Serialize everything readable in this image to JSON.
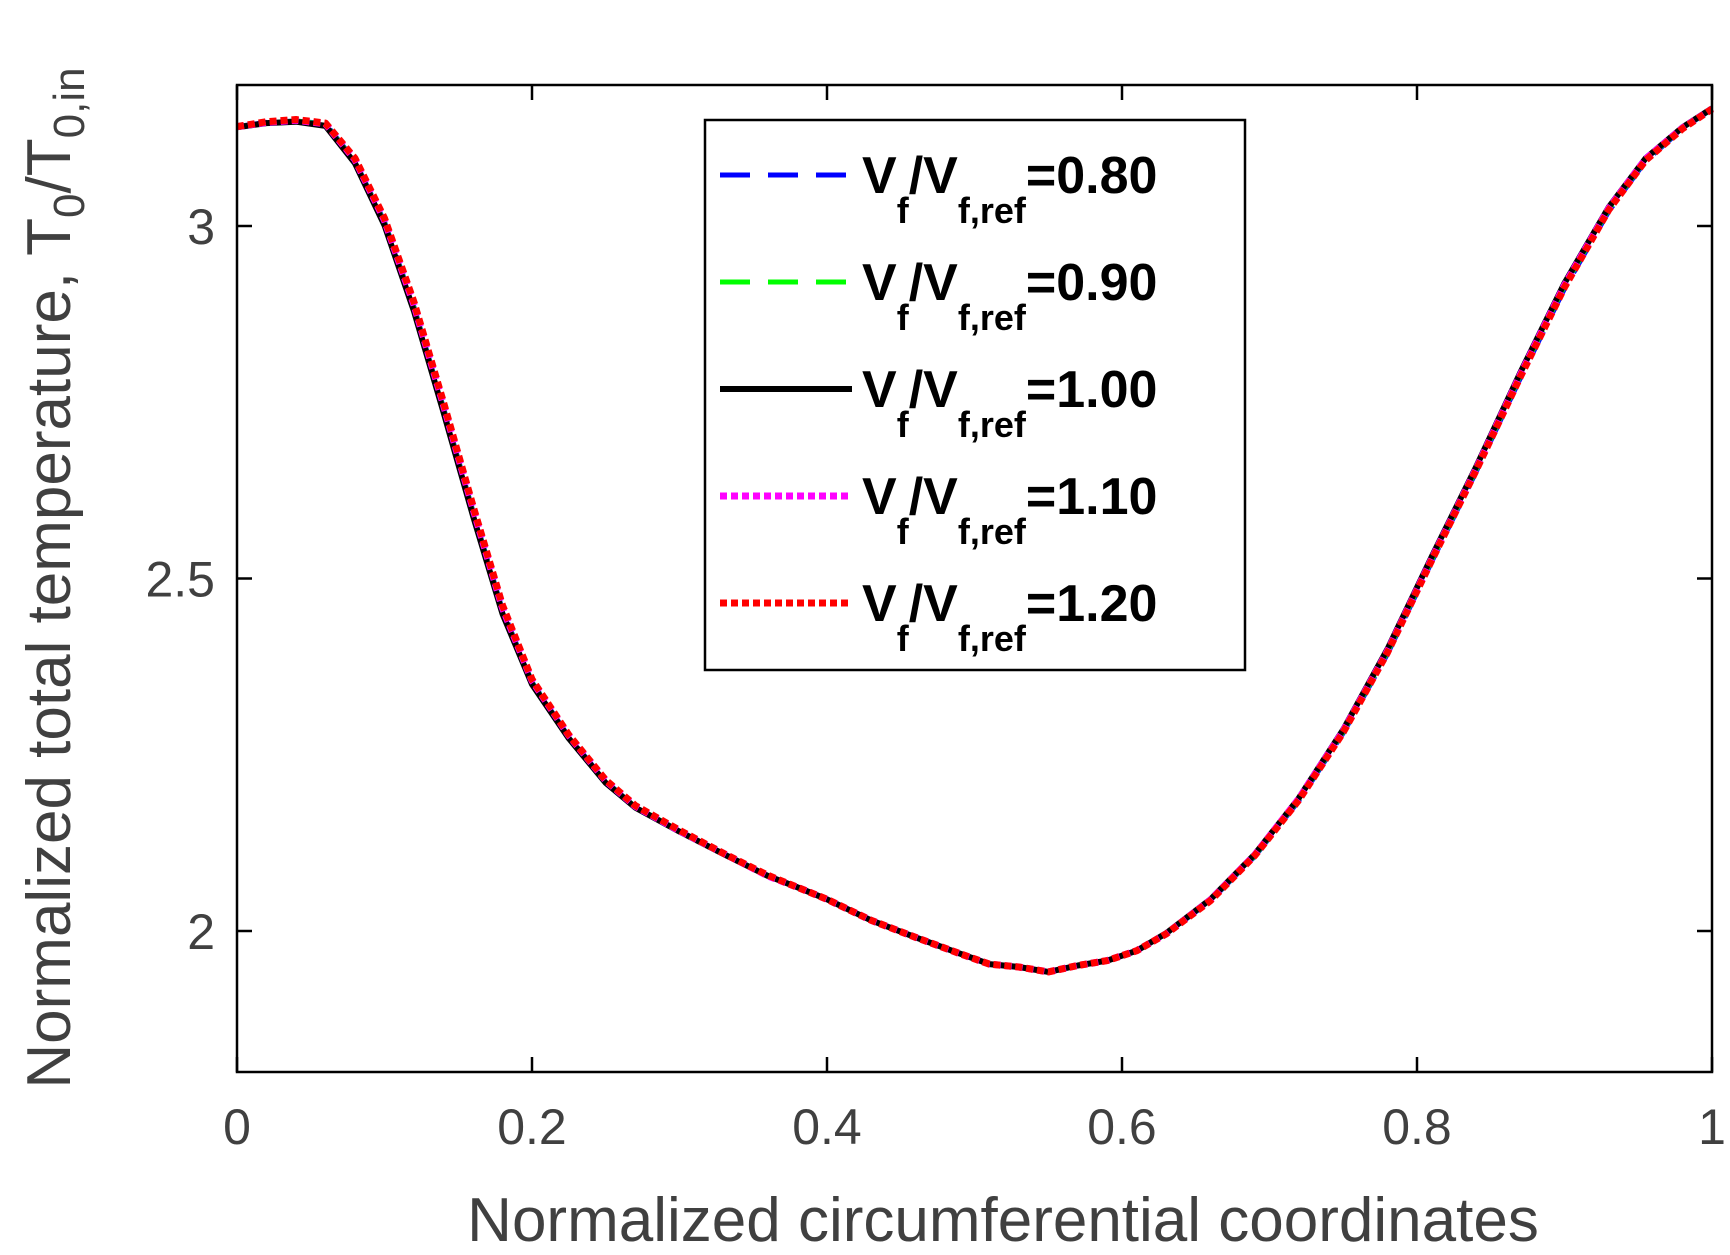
{
  "chart_data": {
    "type": "line",
    "title": "",
    "xlabel": "Normalized circumferential coordinates",
    "ylabel": "Normalized total temperature, ",
    "ylabel_symbol": {
      "base": "T",
      "sub": "0",
      "slash": "/T",
      "sub2": "0,in"
    },
    "xlim": [
      0,
      1
    ],
    "ylim": [
      1.8,
      3.2
    ],
    "xticks": [
      0,
      0.2,
      0.4,
      0.6,
      0.8,
      1
    ],
    "xtick_labels": [
      "0",
      "0.2",
      "0.4",
      "0.6",
      "0.8",
      "1"
    ],
    "yticks": [
      2,
      2.5,
      3
    ],
    "ytick_labels": [
      "2",
      "2.5",
      "3"
    ],
    "legend_position": "top-center",
    "x": [
      0,
      0.02,
      0.04,
      0.06,
      0.08,
      0.1,
      0.12,
      0.14,
      0.16,
      0.18,
      0.2,
      0.225,
      0.25,
      0.27,
      0.3,
      0.33,
      0.36,
      0.38,
      0.4,
      0.43,
      0.46,
      0.49,
      0.51,
      0.53,
      0.55,
      0.57,
      0.59,
      0.61,
      0.63,
      0.66,
      0.69,
      0.72,
      0.75,
      0.78,
      0.81,
      0.84,
      0.87,
      0.9,
      0.93,
      0.955,
      0.98,
      1.0
    ],
    "series": [
      {
        "name": "V_f/V_f,ref=0.80",
        "label_parts": {
          "a": "V",
          "a_sub": "f",
          "b": "/V",
          "b_sub": "f,ref",
          "value": "=0.80"
        },
        "color": "#0000ff",
        "style": "dashed",
        "values": [
          3.141,
          3.147,
          3.149,
          3.145,
          3.092,
          3.006,
          2.885,
          2.742,
          2.595,
          2.455,
          2.353,
          2.275,
          2.212,
          2.176,
          2.142,
          2.109,
          2.078,
          2.062,
          2.045,
          2.015,
          1.991,
          1.968,
          1.953,
          1.949,
          1.942,
          1.951,
          1.958,
          1.972,
          1.996,
          2.043,
          2.106,
          2.185,
          2.281,
          2.393,
          2.524,
          2.651,
          2.784,
          2.911,
          3.021,
          3.092,
          3.138,
          3.166
        ]
      },
      {
        "name": "V_f/V_f,ref=0.90",
        "label_parts": {
          "a": "V",
          "a_sub": "f",
          "b": "/V",
          "b_sub": "f,ref",
          "value": "=0.90"
        },
        "color": "#00ff00",
        "style": "dashed",
        "values": [
          3.141,
          3.146,
          3.149,
          3.144,
          3.091,
          3.004,
          2.883,
          2.74,
          2.593,
          2.453,
          2.352,
          2.274,
          2.211,
          2.176,
          2.142,
          2.109,
          2.078,
          2.062,
          2.045,
          2.015,
          1.991,
          1.968,
          1.953,
          1.949,
          1.942,
          1.951,
          1.958,
          1.972,
          1.996,
          2.044,
          2.107,
          2.187,
          2.283,
          2.396,
          2.527,
          2.654,
          2.788,
          2.915,
          3.024,
          3.094,
          3.139,
          3.166
        ]
      },
      {
        "name": "V_f/V_f,ref=1.00",
        "label_parts": {
          "a": "V",
          "a_sub": "f",
          "b": "/V",
          "b_sub": "f,ref",
          "value": "=1.00"
        },
        "color": "#000000",
        "style": "solid",
        "values": [
          3.14,
          3.146,
          3.148,
          3.142,
          3.089,
          3.001,
          2.879,
          2.736,
          2.589,
          2.45,
          2.35,
          2.273,
          2.21,
          2.175,
          2.141,
          2.109,
          2.078,
          2.062,
          2.045,
          2.015,
          1.991,
          1.968,
          1.953,
          1.949,
          1.942,
          1.951,
          1.958,
          1.972,
          1.997,
          2.045,
          2.109,
          2.189,
          2.286,
          2.4,
          2.531,
          2.658,
          2.792,
          2.919,
          3.027,
          3.096,
          3.14,
          3.167
        ]
      },
      {
        "name": "V_f/V_f,ref=1.10",
        "label_parts": {
          "a": "V",
          "a_sub": "f",
          "b": "/V",
          "b_sub": "f,ref",
          "value": "=1.10"
        },
        "color": "#ff00ff",
        "style": "dotted",
        "values": [
          3.141,
          3.147,
          3.15,
          3.145,
          3.094,
          3.008,
          2.888,
          2.746,
          2.599,
          2.458,
          2.355,
          2.277,
          2.213,
          2.177,
          2.142,
          2.11,
          2.078,
          2.062,
          2.045,
          2.015,
          1.991,
          1.968,
          1.953,
          1.949,
          1.942,
          1.951,
          1.958,
          1.972,
          1.996,
          2.044,
          2.108,
          2.188,
          2.284,
          2.397,
          2.528,
          2.655,
          2.789,
          2.916,
          3.025,
          3.095,
          3.139,
          3.166
        ]
      },
      {
        "name": "V_f/V_f,ref=1.20",
        "label_parts": {
          "a": "V",
          "a_sub": "f",
          "b": "/V",
          "b_sub": "f,ref",
          "value": "=1.20"
        },
        "color": "#ff0000",
        "style": "dotted",
        "values": [
          3.141,
          3.148,
          3.151,
          3.146,
          3.096,
          3.011,
          2.892,
          2.75,
          2.603,
          2.462,
          2.357,
          2.278,
          2.214,
          2.178,
          2.143,
          2.11,
          2.079,
          2.062,
          2.045,
          2.015,
          1.991,
          1.968,
          1.953,
          1.949,
          1.942,
          1.951,
          1.958,
          1.972,
          1.996,
          2.043,
          2.107,
          2.186,
          2.282,
          2.395,
          2.526,
          2.653,
          2.786,
          2.913,
          3.023,
          3.093,
          3.138,
          3.166
        ]
      }
    ]
  }
}
